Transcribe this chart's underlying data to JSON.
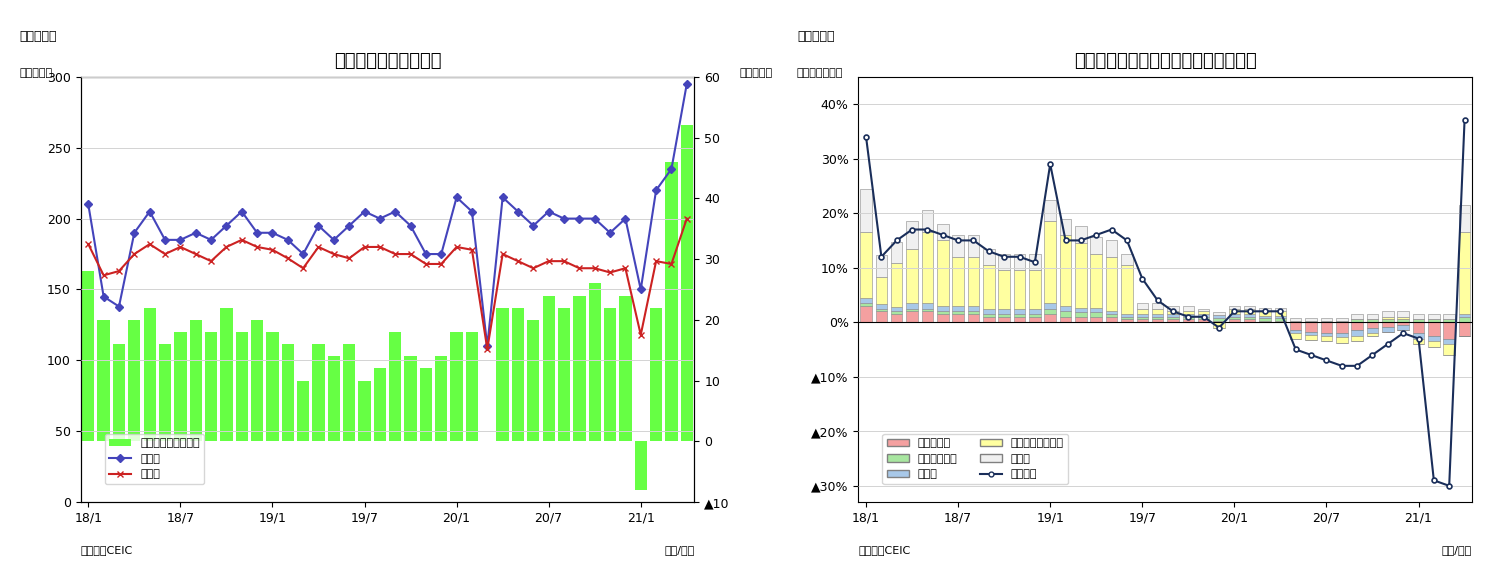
{
  "chart1": {
    "title": "マレーシア　賿易収支",
    "subtitle": "（図表７）",
    "ylabel_left": "（億ドル）",
    "ylabel_right": "（億ドル）",
    "xlabel": "（年/月）",
    "source": "（資料）CEIC",
    "bar_color": "#66FF44",
    "line1_color": "#4444BB",
    "line2_color": "#CC2222",
    "legend_labels": [
      "賿易収支（右目盛）",
      "輸出額",
      "輸入額"
    ],
    "xtick_labels": [
      "18/1",
      "18/7",
      "19/1",
      "19/7",
      "20/1",
      "20/7",
      "21/1"
    ],
    "exports": [
      210,
      145,
      138,
      190,
      205,
      185,
      185,
      190,
      185,
      195,
      205,
      190,
      190,
      185,
      175,
      195,
      185,
      195,
      205,
      200,
      205,
      195,
      175,
      175,
      215,
      205,
      110,
      215,
      205,
      195,
      205,
      200,
      200,
      200,
      190,
      200,
      150,
      220,
      235,
      295
    ],
    "imports": [
      182,
      160,
      163,
      175,
      182,
      175,
      180,
      175,
      170,
      180,
      185,
      180,
      178,
      172,
      165,
      180,
      175,
      172,
      180,
      180,
      175,
      175,
      168,
      168,
      180,
      178,
      108,
      175,
      170,
      165,
      170,
      170,
      165,
      165,
      162,
      165,
      118,
      170,
      168,
      200
    ],
    "trade_balance": [
      28,
      20,
      16,
      20,
      22,
      16,
      18,
      20,
      18,
      22,
      18,
      20,
      18,
      16,
      10,
      16,
      14,
      16,
      10,
      12,
      18,
      14,
      12,
      14,
      18,
      18,
      0,
      22,
      22,
      20,
      24,
      22,
      24,
      26,
      22,
      24,
      -8,
      22,
      46,
      52
    ]
  },
  "chart2": {
    "title": "マレーシア　輸出の伸び率（品目別）",
    "subtitle": "（図表８）",
    "ylabel_left": "（前年同月比）",
    "xlabel": "（年/月）",
    "source": "（資料）CEIC",
    "colors": {
      "mineral_fuel": "#F4A0A0",
      "animal_veg_oil": "#A8E6A0",
      "manufactured": "#A8C8E8",
      "machinery": "#FFFFA0",
      "other": "#F0F0F0",
      "total_line": "#1A2E5A"
    },
    "legend_labels": [
      "鉱物性燃料",
      "動植物性油肇",
      "製造品",
      "機械・輸送用機器",
      "その他",
      "輸出合計"
    ],
    "xtick_labels": [
      "18/1",
      "18/7",
      "19/1",
      "19/7",
      "20/1",
      "20/7",
      "21/1"
    ],
    "mineral_fuel": [
      0.03,
      0.02,
      0.015,
      0.02,
      0.02,
      0.015,
      0.015,
      0.015,
      0.01,
      0.01,
      0.01,
      0.01,
      0.015,
      0.01,
      0.01,
      0.01,
      0.01,
      0.005,
      0.005,
      0.005,
      0.005,
      0.005,
      0.005,
      0.003,
      0.005,
      0.005,
      0.003,
      0.003,
      -0.015,
      -0.018,
      -0.02,
      -0.02,
      -0.015,
      -0.01,
      -0.008,
      -0.005,
      -0.02,
      -0.025,
      -0.03,
      -0.025
    ],
    "animal_veg_oil": [
      0.005,
      0.005,
      0.005,
      0.005,
      0.005,
      0.005,
      0.005,
      0.005,
      0.005,
      0.005,
      0.005,
      0.005,
      0.01,
      0.01,
      0.008,
      0.008,
      0.005,
      0.005,
      0.005,
      0.005,
      0.005,
      0.005,
      0.005,
      0.005,
      0.005,
      0.005,
      0.005,
      0.005,
      0.003,
      0.003,
      0.003,
      0.003,
      0.005,
      0.005,
      0.005,
      0.005,
      0.005,
      0.005,
      0.005,
      0.01
    ],
    "manufactured": [
      0.01,
      0.008,
      0.008,
      0.01,
      0.01,
      0.01,
      0.01,
      0.01,
      0.01,
      0.01,
      0.01,
      0.01,
      0.01,
      0.01,
      0.008,
      0.008,
      0.005,
      0.005,
      0.005,
      0.005,
      0.005,
      0.005,
      0.005,
      0.005,
      0.005,
      0.005,
      0.003,
      0.003,
      -0.005,
      -0.005,
      -0.005,
      -0.008,
      -0.01,
      -0.01,
      -0.01,
      -0.01,
      -0.01,
      -0.01,
      -0.01,
      0.005
    ],
    "machinery": [
      0.12,
      0.05,
      0.08,
      0.1,
      0.13,
      0.12,
      0.09,
      0.09,
      0.08,
      0.07,
      0.07,
      0.07,
      0.15,
      0.13,
      0.12,
      0.1,
      0.1,
      0.09,
      0.01,
      0.01,
      0.005,
      0.005,
      0.005,
      -0.01,
      0.01,
      0.01,
      0.01,
      0.01,
      -0.01,
      -0.01,
      -0.01,
      -0.01,
      -0.01,
      -0.005,
      0.005,
      0.005,
      -0.01,
      -0.01,
      -0.02,
      0.15
    ],
    "other": [
      0.08,
      0.04,
      0.04,
      0.05,
      0.04,
      0.03,
      0.04,
      0.04,
      0.03,
      0.03,
      0.03,
      0.03,
      0.04,
      0.03,
      0.03,
      0.03,
      0.03,
      0.02,
      0.01,
      0.01,
      0.01,
      0.01,
      0.005,
      0.005,
      0.005,
      0.005,
      0.005,
      0.005,
      0.005,
      0.005,
      0.005,
      0.005,
      0.01,
      0.01,
      0.01,
      0.01,
      0.01,
      0.01,
      0.01,
      0.05
    ],
    "total_line": [
      0.34,
      0.12,
      0.15,
      0.17,
      0.17,
      0.16,
      0.15,
      0.15,
      0.13,
      0.12,
      0.12,
      0.11,
      0.29,
      0.15,
      0.15,
      0.16,
      0.17,
      0.15,
      0.08,
      0.04,
      0.02,
      0.01,
      0.01,
      -0.01,
      0.02,
      0.02,
      0.02,
      0.02,
      -0.05,
      -0.06,
      -0.07,
      -0.08,
      -0.08,
      -0.06,
      -0.04,
      -0.02,
      -0.03,
      -0.29,
      -0.3,
      0.37
    ]
  }
}
